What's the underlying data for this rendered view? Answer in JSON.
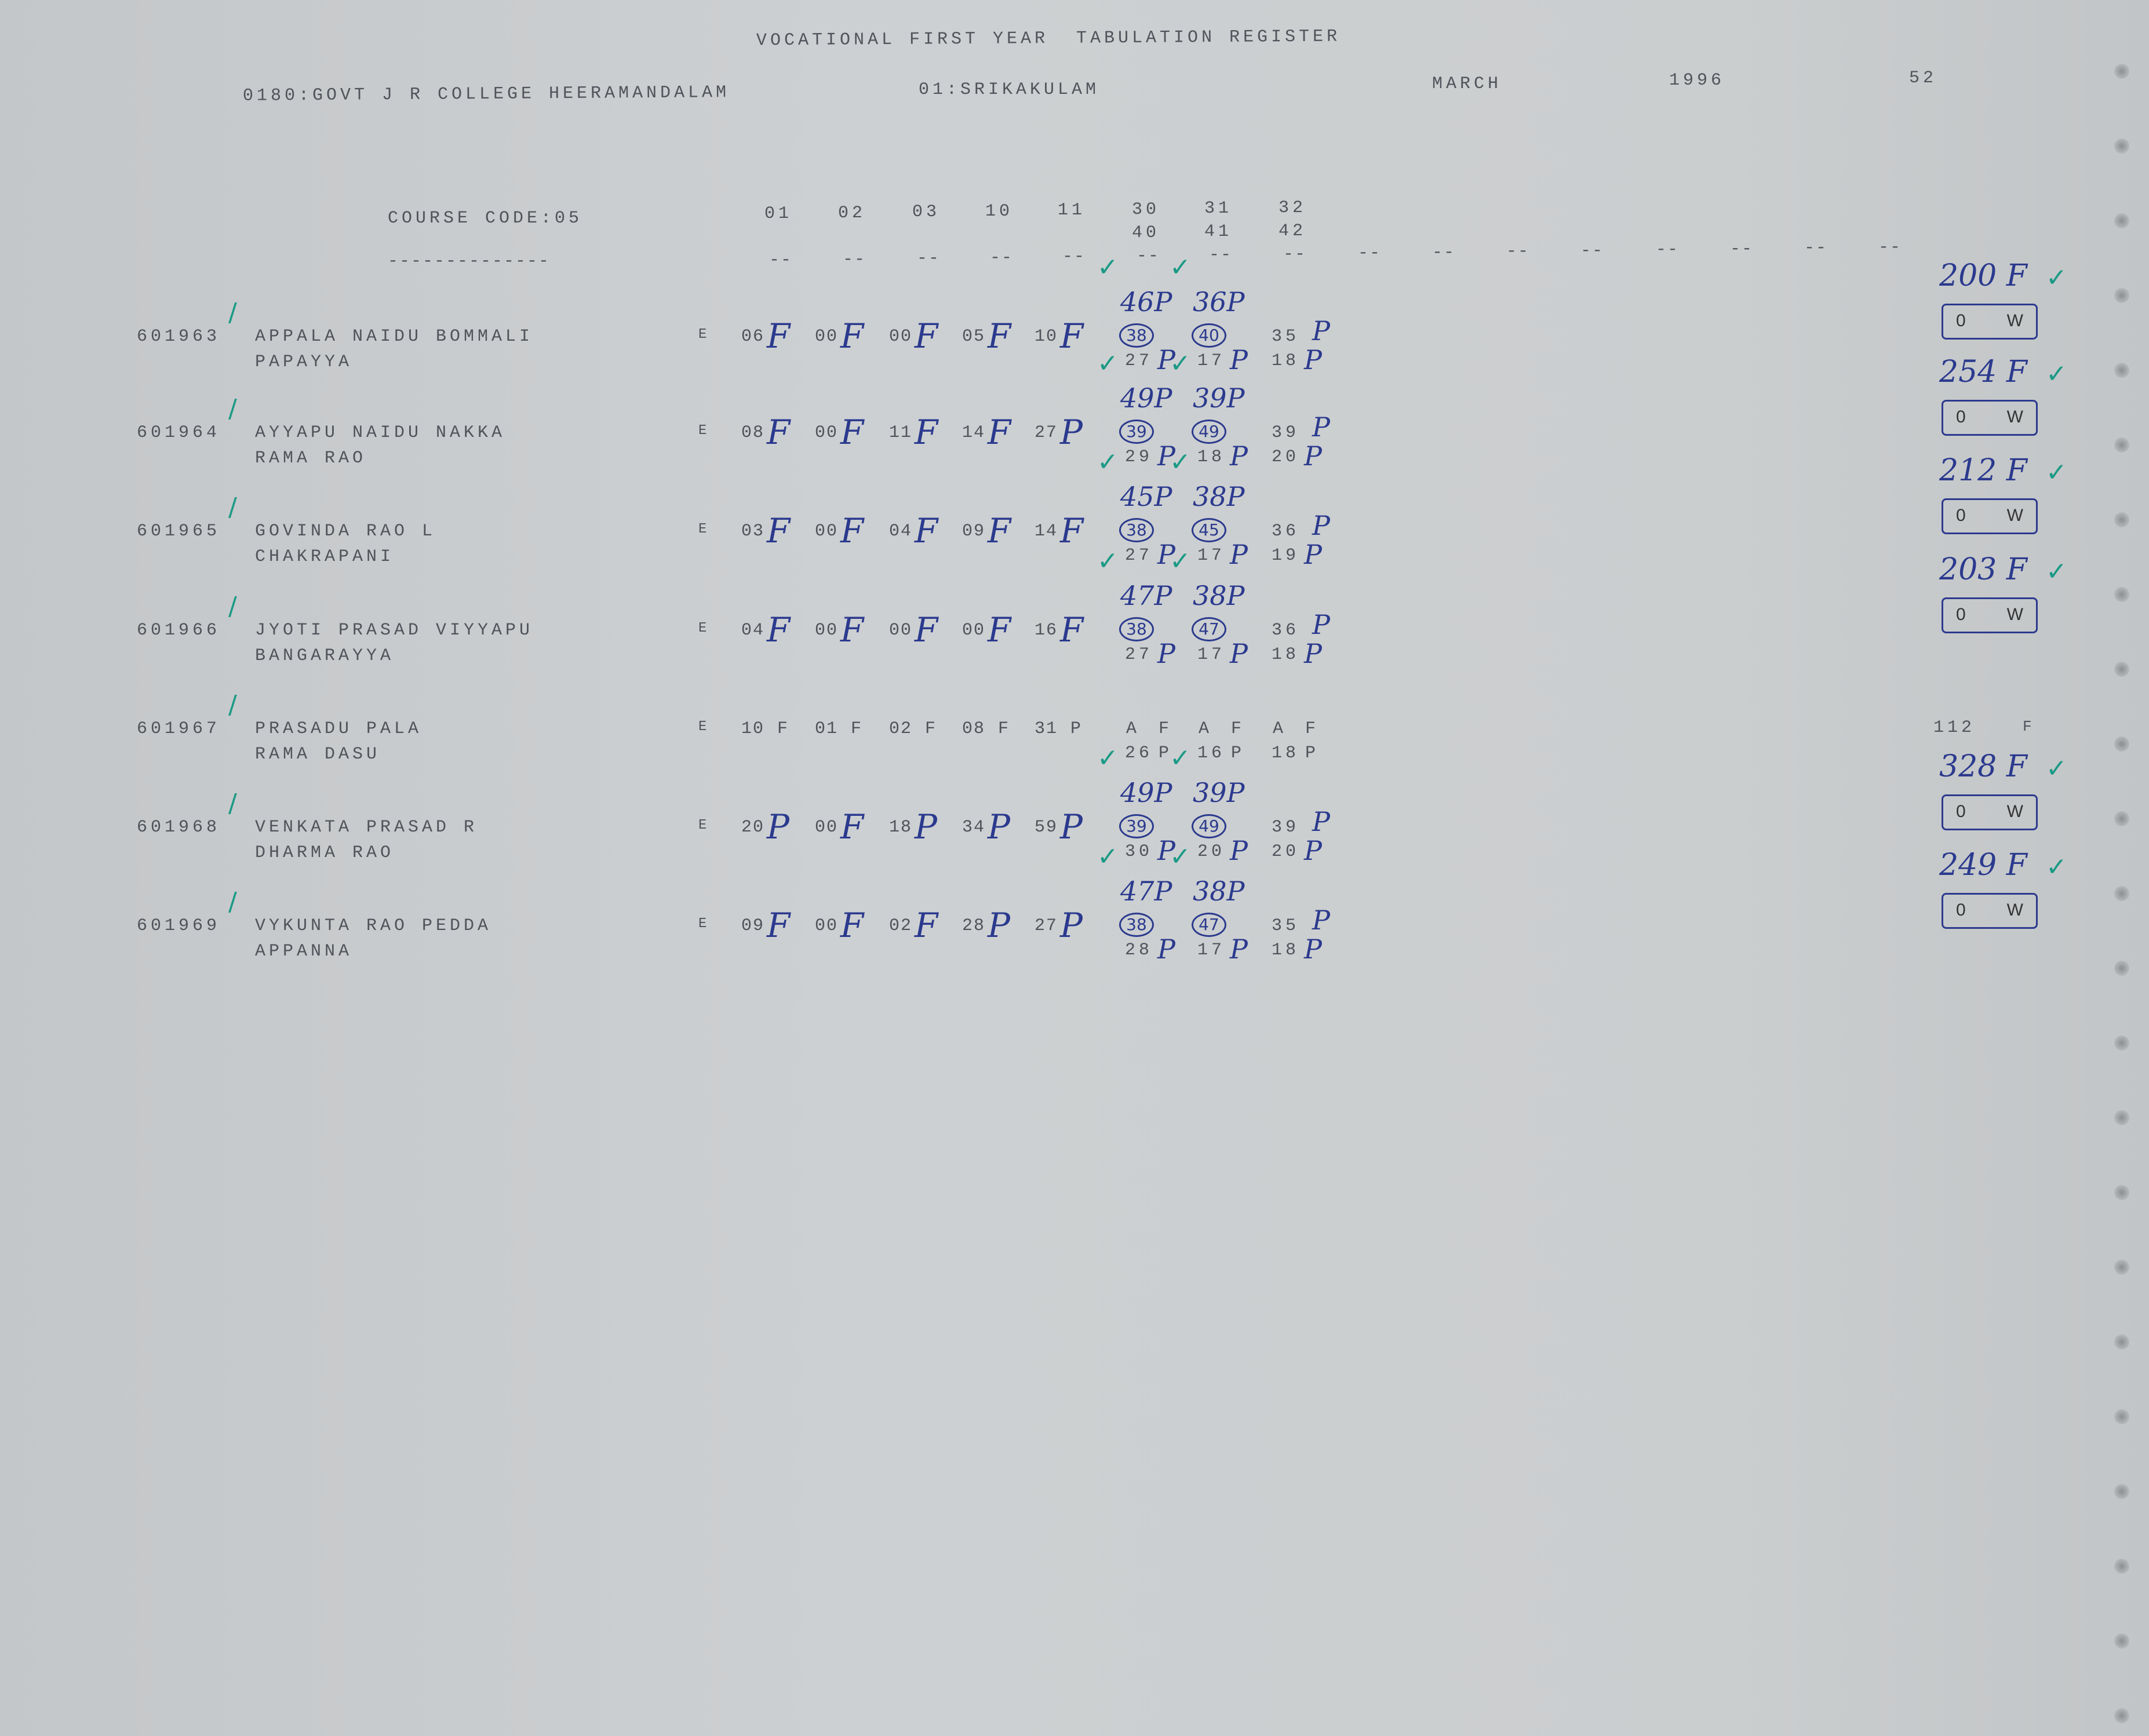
{
  "header": {
    "title": "VOCATIONAL FIRST YEAR  TABULATION REGISTER",
    "college": "0180:GOVT J R COLLEGE HEERAMANDALAM",
    "district": "01:SRIKAKULAM",
    "month": "MARCH",
    "year": "1996",
    "page": "52"
  },
  "columns": {
    "course_code": "COURSE CODE:05",
    "course_dashes": "--------------",
    "codes": [
      "01",
      "02",
      "03",
      "10",
      "11",
      "30",
      "31",
      "32"
    ],
    "codes_row2": [
      "40",
      "41",
      "42"
    ],
    "dash": "--"
  },
  "colors": {
    "typed": "#50535a",
    "ink_blue": "#2b3a8e",
    "ink_teal": "#1b9a86",
    "paper": "#cbcecf"
  },
  "students": [
    {
      "roll": "601963",
      "name": "APPALA NAIDU BOMMALI",
      "name2": "PAPAYYA",
      "medium": "E",
      "subjects": [
        [
          "06",
          "F"
        ],
        [
          "00",
          "F"
        ],
        [
          "00",
          "F"
        ],
        [
          "05",
          "F"
        ],
        [
          "10",
          "F"
        ]
      ],
      "pairs": [
        {
          "revised": "46P",
          "circled": "38",
          "lower": "27",
          "lower_res": "P"
        },
        {
          "revised": "36P",
          "circled": "40",
          "lower": "17",
          "lower_res": "P"
        },
        {
          "upper": "35",
          "upper_res": "P",
          "lower": "18",
          "lower_res": "P"
        }
      ],
      "total": "200 F",
      "box": [
        "0",
        "W"
      ]
    },
    {
      "roll": "601964",
      "name": "AYYAPU NAIDU NAKKA",
      "name2": "RAMA RAO",
      "medium": "E",
      "subjects": [
        [
          "08",
          "F"
        ],
        [
          "00",
          "F"
        ],
        [
          "11",
          "F"
        ],
        [
          "14",
          "F"
        ],
        [
          "27",
          "P"
        ]
      ],
      "pairs": [
        {
          "revised": "49P",
          "circled": "39",
          "lower": "29",
          "lower_res": "P"
        },
        {
          "revised": "39P",
          "circled": "49",
          "lower": "18",
          "lower_res": "P"
        },
        {
          "upper": "39",
          "upper_res": "P",
          "lower": "20",
          "lower_res": "P"
        }
      ],
      "total": "254 F",
      "box": [
        "0",
        "W"
      ]
    },
    {
      "roll": "601965",
      "name": "GOVINDA RAO L",
      "name2": "CHAKRAPANI",
      "medium": "E",
      "subjects": [
        [
          "03",
          "F"
        ],
        [
          "00",
          "F"
        ],
        [
          "04",
          "F"
        ],
        [
          "09",
          "F"
        ],
        [
          "14",
          "F"
        ]
      ],
      "pairs": [
        {
          "revised": "45P",
          "circled": "38",
          "lower": "27",
          "lower_res": "P"
        },
        {
          "revised": "38P",
          "circled": "45",
          "lower": "17",
          "lower_res": "P"
        },
        {
          "upper": "36",
          "upper_res": "P",
          "lower": "19",
          "lower_res": "P"
        }
      ],
      "total": "212 F",
      "box": [
        "0",
        "W"
      ]
    },
    {
      "roll": "601966",
      "name": "JYOTI PRASAD VIYYAPU",
      "name2": "BANGARAYYA",
      "medium": "E",
      "subjects": [
        [
          "04",
          "F"
        ],
        [
          "00",
          "F"
        ],
        [
          "00",
          "F"
        ],
        [
          "00",
          "F"
        ],
        [
          "16",
          "F"
        ]
      ],
      "pairs": [
        {
          "revised": "47P",
          "circled": "38",
          "lower": "27",
          "lower_res": "P"
        },
        {
          "revised": "38P",
          "circled": "47",
          "lower": "17",
          "lower_res": "P"
        },
        {
          "upper": "36",
          "upper_res": "P",
          "lower": "18",
          "lower_res": "P"
        }
      ],
      "total": "203 F",
      "box": [
        "0",
        "W"
      ]
    },
    {
      "roll": "601967",
      "name": "PRASADU PALA",
      "name2": "RAMA DASU",
      "medium": "E",
      "typed": true,
      "subjects": [
        [
          "10",
          "F"
        ],
        [
          "01",
          "F"
        ],
        [
          "02",
          "F"
        ],
        [
          "08",
          "F"
        ],
        [
          "31",
          "P"
        ]
      ],
      "pairs": [
        {
          "upper": "A",
          "upper_res": "F",
          "lower": "26",
          "lower_res": "P"
        },
        {
          "upper": "A",
          "upper_res": "F",
          "lower": "16",
          "lower_res": "P"
        },
        {
          "upper": "A",
          "upper_res": "F",
          "lower": "18",
          "lower_res": "P"
        }
      ],
      "total": "112",
      "total_res": "F"
    },
    {
      "roll": "601968",
      "name": "VENKATA PRASAD R",
      "name2": "DHARMA RAO",
      "medium": "E",
      "subjects": [
        [
          "20",
          "P"
        ],
        [
          "00",
          "F"
        ],
        [
          "18",
          "P"
        ],
        [
          "34",
          "P"
        ],
        [
          "59",
          "P"
        ]
      ],
      "pairs": [
        {
          "revised": "49P",
          "circled": "39",
          "lower": "30",
          "lower_res": "P"
        },
        {
          "revised": "39P",
          "circled": "49",
          "lower": "20",
          "lower_res": "P"
        },
        {
          "upper": "39",
          "upper_res": "P",
          "lower": "20",
          "lower_res": "P"
        }
      ],
      "total": "328 F",
      "box": [
        "0",
        "W"
      ]
    },
    {
      "roll": "601969",
      "name": "VYKUNTA RAO PEDDA",
      "name2": "APPANNA",
      "medium": "E",
      "subjects": [
        [
          "09",
          "F"
        ],
        [
          "00",
          "F"
        ],
        [
          "02",
          "F"
        ],
        [
          "28",
          "P"
        ],
        [
          "27",
          "P"
        ]
      ],
      "pairs": [
        {
          "revised": "47P",
          "circled": "38",
          "lower": "28",
          "lower_res": "P"
        },
        {
          "revised": "38P",
          "circled": "47",
          "lower": "17",
          "lower_res": "P"
        },
        {
          "upper": "35",
          "upper_res": "P",
          "lower": "18",
          "lower_res": "P"
        }
      ],
      "total": "249 F",
      "box": [
        "0",
        "W"
      ]
    }
  ]
}
